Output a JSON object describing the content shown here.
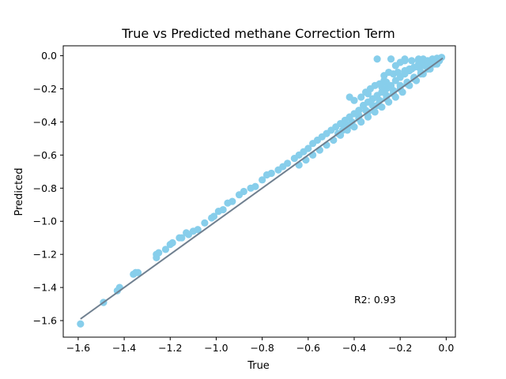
{
  "chart_data": {
    "type": "scatter",
    "title": "True vs Predicted methane Correction Term",
    "xlabel": "True",
    "ylabel": "Predicted",
    "xlim": [
      -1.665,
      0.04
    ],
    "ylim": [
      -1.7,
      0.06
    ],
    "xticks": [
      -1.6,
      -1.4,
      -1.2,
      -1.0,
      -0.8,
      -0.6,
      -0.4,
      -0.2,
      0.0
    ],
    "xtick_labels": [
      "−1.6",
      "−1.4",
      "−1.2",
      "−1.0",
      "−0.8",
      "−0.6",
      "−0.4",
      "−0.2",
      "0.0"
    ],
    "yticks": [
      0.0,
      -0.2,
      -0.4,
      -0.6,
      -0.8,
      -1.0,
      -1.2,
      -1.4,
      -1.6
    ],
    "ytick_labels": [
      "0.0",
      "−0.2",
      "−0.4",
      "−0.6",
      "−0.8",
      "−1.0",
      "−1.2",
      "−1.4",
      "−1.6"
    ],
    "grid": false,
    "annotation": "R2: 0.93",
    "colors": {
      "points": "#87ceeb",
      "fit_line": "#708090"
    },
    "fit_line": {
      "x": [
        -1.59,
        -0.015
      ],
      "y": [
        -1.59,
        -0.015
      ]
    },
    "series": [
      {
        "x": [
          -1.59,
          -1.49,
          -1.43,
          -1.42,
          -1.36,
          -1.35,
          -1.34,
          -1.26,
          -1.26,
          -1.25,
          -1.22,
          -1.2,
          -1.19,
          -1.16,
          -1.15,
          -1.13,
          -1.12,
          -1.1,
          -1.08,
          -1.05,
          -1.02,
          -1.01,
          -0.99,
          -0.97,
          -0.95,
          -0.93,
          -0.9,
          -0.88,
          -0.85,
          -0.83,
          -0.8,
          -0.78,
          -0.76,
          -0.73,
          -0.71,
          -0.69,
          -0.66,
          -0.64,
          -0.62,
          -0.6,
          -0.58,
          -0.56,
          -0.54,
          -0.52,
          -0.5,
          -0.48,
          -0.46,
          -0.44,
          -0.42,
          -0.4,
          -0.38,
          -0.36,
          -0.34,
          -0.32,
          -0.3,
          -0.28,
          -0.26,
          -0.24,
          -0.22,
          -0.2,
          -0.18,
          -0.16,
          -0.14,
          -0.12,
          -0.1,
          -0.08,
          -0.06,
          -0.04,
          -0.02,
          -0.64,
          -0.61,
          -0.58,
          -0.55,
          -0.52,
          -0.49,
          -0.46,
          -0.43,
          -0.4,
          -0.37,
          -0.34,
          -0.31,
          -0.28,
          -0.25,
          -0.22,
          -0.19,
          -0.16,
          -0.13,
          -0.1,
          -0.07,
          -0.04,
          -0.03,
          -0.03,
          -0.05,
          -0.08,
          -0.11,
          -0.14,
          -0.17,
          -0.2,
          -0.23,
          -0.26,
          -0.3,
          -0.34,
          -0.38,
          -0.42,
          -0.45,
          -0.47,
          -0.44,
          -0.41,
          -0.38,
          -0.35,
          -0.32,
          -0.29,
          -0.26,
          -0.23,
          -0.2,
          -0.17,
          -0.14,
          -0.11,
          -0.08,
          -0.06,
          -0.12,
          -0.18,
          -0.24,
          -0.3,
          -0.22,
          -0.16,
          -0.1,
          -0.05,
          -0.26,
          -0.28,
          -0.27,
          -0.25,
          -0.23,
          -0.21,
          -0.18,
          -0.15,
          -0.12,
          -0.09,
          -0.35,
          -0.33,
          -0.31,
          -0.29,
          -0.27,
          -0.4,
          -0.37,
          -0.34,
          -0.2,
          -0.18,
          -0.36,
          -0.15,
          -0.42,
          -0.12,
          -0.1
        ],
        "y": [
          -1.62,
          -1.49,
          -1.42,
          -1.4,
          -1.32,
          -1.31,
          -1.31,
          -1.2,
          -1.22,
          -1.19,
          -1.17,
          -1.14,
          -1.13,
          -1.1,
          -1.1,
          -1.07,
          -1.08,
          -1.06,
          -1.05,
          -1.01,
          -0.98,
          -0.97,
          -0.94,
          -0.93,
          -0.89,
          -0.88,
          -0.84,
          -0.82,
          -0.8,
          -0.79,
          -0.75,
          -0.72,
          -0.71,
          -0.69,
          -0.67,
          -0.65,
          -0.62,
          -0.6,
          -0.58,
          -0.56,
          -0.53,
          -0.51,
          -0.49,
          -0.47,
          -0.45,
          -0.43,
          -0.41,
          -0.39,
          -0.37,
          -0.35,
          -0.33,
          -0.3,
          -0.28,
          -0.26,
          -0.24,
          -0.22,
          -0.2,
          -0.18,
          -0.15,
          -0.13,
          -0.11,
          -0.09,
          -0.07,
          -0.05,
          -0.04,
          -0.03,
          -0.02,
          -0.015,
          -0.01,
          -0.66,
          -0.63,
          -0.6,
          -0.57,
          -0.54,
          -0.51,
          -0.48,
          -0.45,
          -0.43,
          -0.4,
          -0.37,
          -0.34,
          -0.31,
          -0.28,
          -0.25,
          -0.22,
          -0.18,
          -0.15,
          -0.11,
          -0.08,
          -0.05,
          -0.03,
          -0.03,
          -0.05,
          -0.08,
          -0.11,
          -0.14,
          -0.17,
          -0.2,
          -0.23,
          -0.26,
          -0.3,
          -0.34,
          -0.38,
          -0.42,
          -0.45,
          -0.47,
          -0.43,
          -0.4,
          -0.36,
          -0.33,
          -0.3,
          -0.27,
          -0.24,
          -0.21,
          -0.18,
          -0.16,
          -0.13,
          -0.1,
          -0.07,
          -0.04,
          -0.02,
          -0.02,
          -0.02,
          -0.02,
          -0.06,
          -0.08,
          -0.06,
          -0.04,
          -0.16,
          -0.19,
          -0.12,
          -0.1,
          -0.11,
          -0.1,
          -0.09,
          -0.08,
          -0.07,
          -0.06,
          -0.22,
          -0.2,
          -0.18,
          -0.17,
          -0.15,
          -0.27,
          -0.25,
          -0.23,
          -0.04,
          -0.03,
          -0.3,
          -0.03,
          -0.25,
          -0.03,
          -0.02
        ]
      }
    ]
  }
}
